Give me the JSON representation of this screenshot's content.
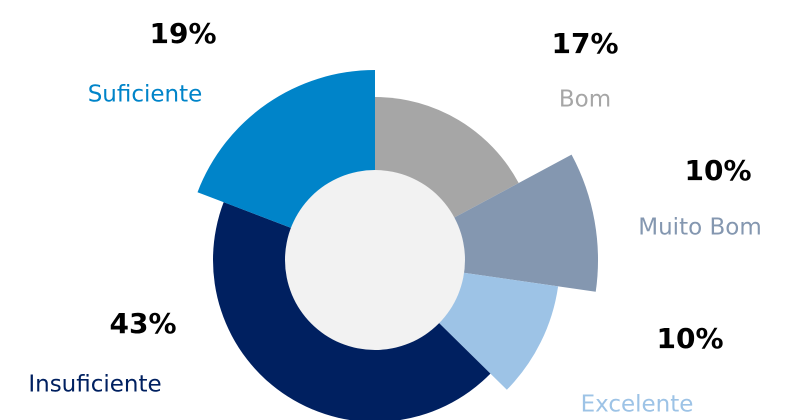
{
  "chart_data": {
    "type": "pie",
    "categories": [
      "Bom",
      "Muito Bom",
      "Excelente",
      "Insuficiente",
      "Suficiente"
    ],
    "values": [
      17,
      10,
      10,
      43,
      19
    ],
    "value_labels": [
      "17%",
      "10%",
      "10%",
      "43%",
      "19%"
    ],
    "colors": [
      "#a6a6a6",
      "#8497b0",
      "#9dc3e6",
      "#002060",
      "#0084c9"
    ]
  }
}
